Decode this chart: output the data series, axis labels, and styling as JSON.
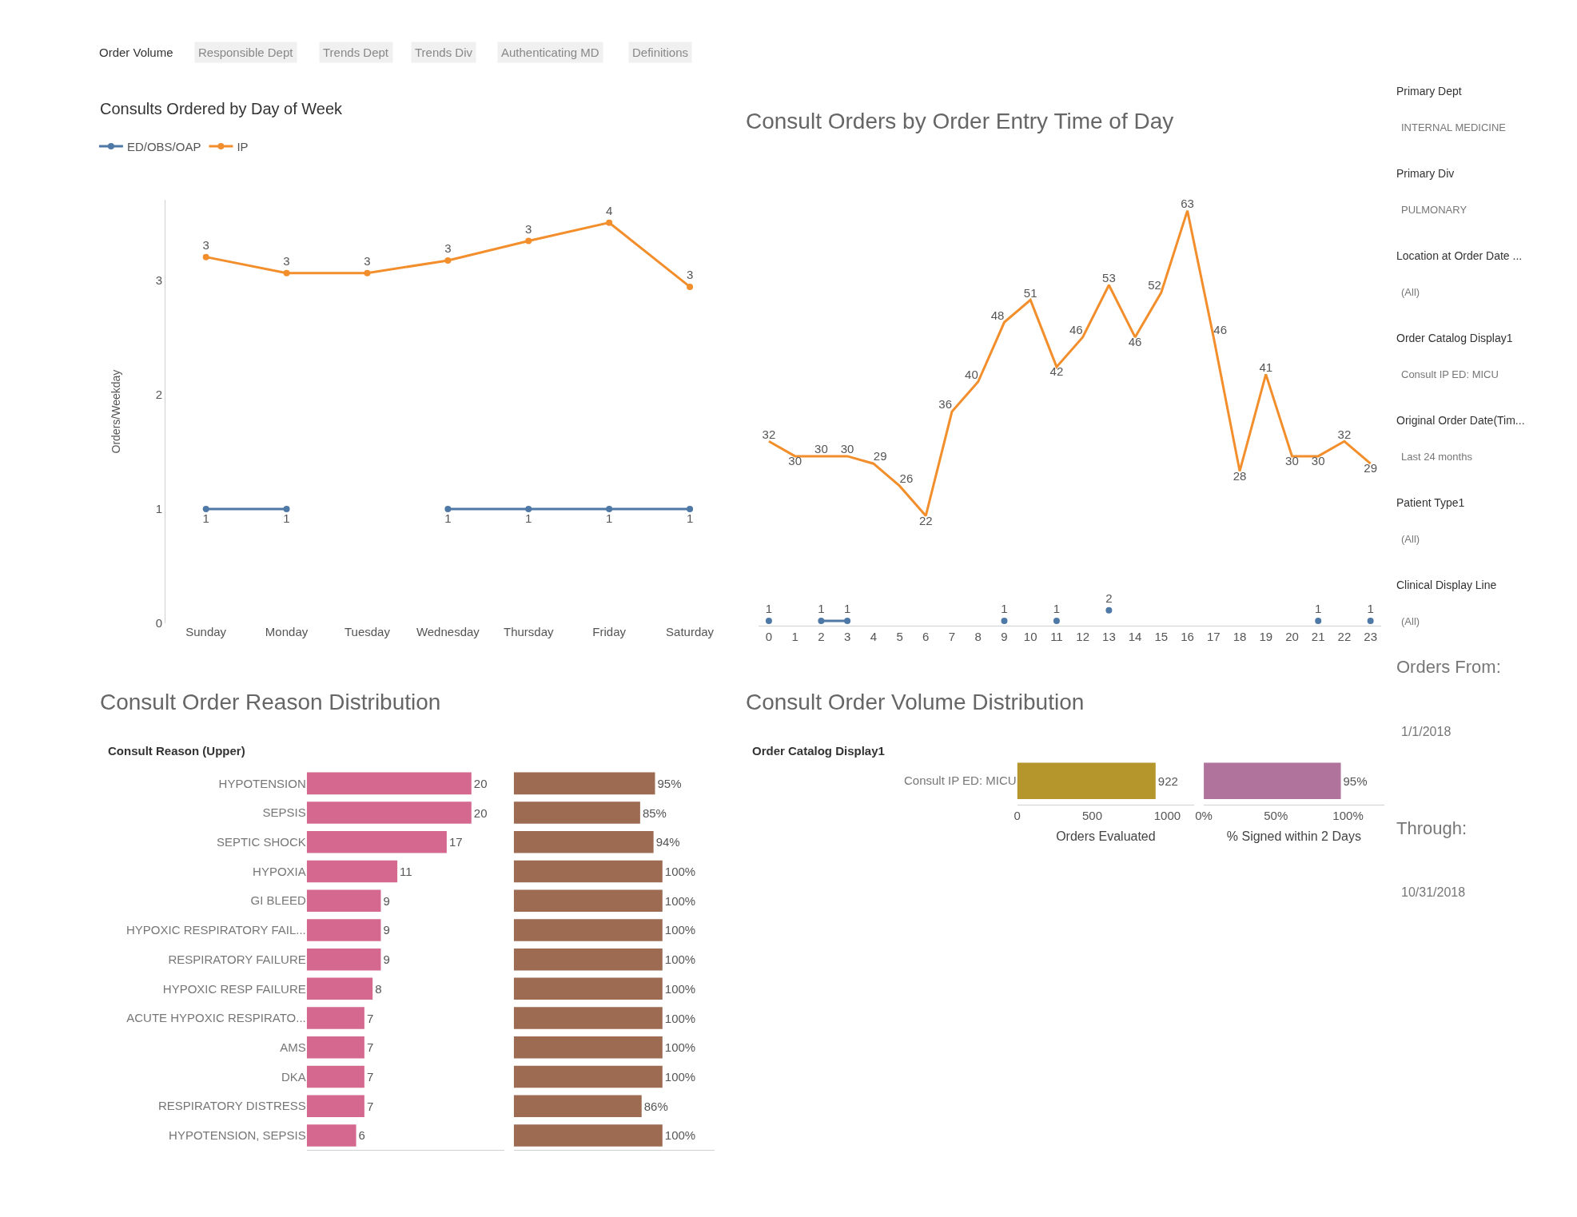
{
  "chart_data": [
    {
      "type": "other",
      "annotations": [
        "Order Volume",
        "Responsible Dept",
        "Trends Dept",
        "Trends Div",
        "Authenticating MD",
        "Definitions"
      ]
    },
    {
      "type": "line",
      "title": "Consults Ordered by Day of Week",
      "ylabel": "Orders/Weekday",
      "categories": [
        "Sunday",
        "Monday",
        "Tuesday",
        "Wednesday",
        "Thursday",
        "Friday",
        "Saturday"
      ],
      "ylim": [
        0,
        3.7
      ],
      "yticks": [
        0,
        1,
        2,
        3
      ],
      "legend": "top left",
      "marker": "circle",
      "series": [
        {
          "name": "ED/OBS/OAP",
          "color": "#4e79a7",
          "values": [
            1,
            1,
            null,
            1,
            1,
            1,
            1
          ],
          "value_labels": [
            "1",
            "1",
            null,
            "1",
            "1",
            "1",
            "1"
          ]
        },
        {
          "name": "IP",
          "color": "#f28e2b",
          "values": [
            3.2,
            3.06,
            3.06,
            3.17,
            3.34,
            3.5,
            2.94
          ],
          "value_labels": [
            "3",
            "3",
            "3",
            "3",
            "3",
            "4",
            "3"
          ]
        }
      ]
    },
    {
      "type": "line",
      "title": "Consult Orders by Order Entry Time of Day",
      "x": [
        0,
        1,
        2,
        3,
        4,
        5,
        6,
        7,
        8,
        9,
        10,
        11,
        12,
        13,
        14,
        15,
        16,
        17,
        18,
        19,
        20,
        21,
        22,
        23
      ],
      "tick_labels": false,
      "data_labels": true,
      "series": [
        {
          "color": "#f28e2b",
          "values": [
            32,
            30,
            30,
            30,
            29,
            26,
            22,
            36,
            40,
            48,
            51,
            42,
            46,
            53,
            46,
            52,
            63,
            46,
            28,
            41,
            30,
            30,
            32,
            29
          ]
        }
      ]
    },
    {
      "type": "line",
      "x": [
        0,
        1,
        2,
        3,
        4,
        5,
        6,
        7,
        8,
        9,
        10,
        11,
        12,
        13,
        14,
        15,
        16,
        17,
        18,
        19,
        20,
        21,
        22,
        23
      ],
      "xlim": [
        -0.4,
        23.4
      ],
      "xticks": [
        0,
        1,
        2,
        3,
        4,
        5,
        6,
        7,
        8,
        9,
        10,
        11,
        12,
        13,
        14,
        15,
        16,
        17,
        18,
        19,
        20,
        21,
        22,
        23
      ],
      "tick_labels": "x",
      "data_labels": true,
      "marker": "circle",
      "series": [
        {
          "color": "#4e79a7",
          "values": [
            1,
            null,
            1,
            1,
            null,
            null,
            null,
            null,
            null,
            1,
            null,
            1,
            null,
            2,
            null,
            null,
            null,
            null,
            null,
            null,
            null,
            1,
            null,
            1
          ]
        }
      ]
    },
    {
      "type": "bar",
      "orientation": "horizontal",
      "title": "Consult Order Reason Distribution",
      "ylabel": "Consult Reason (Upper)",
      "categories": [
        "HYPOTENSION",
        "SEPSIS",
        "SEPTIC SHOCK",
        "HYPOXIA",
        "GI BLEED",
        "HYPOXIC RESPIRATORY FAIL...",
        "RESPIRATORY FAILURE",
        "HYPOXIC RESP FAILURE",
        "ACUTE HYPOXIC RESPIRATO...",
        "AMS",
        "DKA",
        "RESPIRATORY DISTRESS",
        "HYPOTENSION, SEPSIS"
      ],
      "values": [
        20,
        20,
        17,
        11,
        9,
        9,
        9,
        8,
        7,
        7,
        7,
        7,
        6
      ],
      "color": "#d4688f",
      "xlim": [
        0,
        24
      ],
      "tick_labels": "y",
      "data_labels": true
    },
    {
      "type": "bar",
      "orientation": "horizontal",
      "categories": [
        null,
        null,
        null,
        null,
        null,
        null,
        null,
        null,
        null,
        null,
        null,
        null,
        null
      ],
      "values": [
        95,
        85,
        94,
        100,
        100,
        100,
        100,
        100,
        100,
        100,
        100,
        86,
        100
      ],
      "value_labels": [
        "95%",
        "85%",
        "94%",
        "100%",
        "100%",
        "100%",
        "100%",
        "100%",
        "100%",
        "100%",
        "100%",
        "86%",
        "100%"
      ],
      "color": "#9c6b52",
      "xlim": [
        0,
        135
      ],
      "tick_labels": false
    },
    {
      "type": "bar",
      "orientation": "horizontal",
      "title": "Consult Order Volume Distribution",
      "ylabel": "Order Catalog Display1",
      "xlabel": "Orders Evaluated",
      "categories": [
        "Consult IP ED: MICU"
      ],
      "values": [
        922
      ],
      "color": "#b5962c",
      "xlim": [
        0,
        1180
      ],
      "xticks": [
        0,
        500,
        1000
      ],
      "data_labels": true
    },
    {
      "type": "bar",
      "orientation": "horizontal",
      "xlabel": "% Signed within 2 Days",
      "categories": [
        null
      ],
      "values": [
        95
      ],
      "value_labels": [
        "95%"
      ],
      "color": "#b0739c",
      "xlim": [
        0,
        125
      ],
      "xticks": [
        {
          "value": 0,
          "label": "0%"
        },
        {
          "value": 50,
          "label": "50%"
        },
        {
          "value": 100,
          "label": "100%"
        }
      ],
      "tick_labels": "x"
    },
    {
      "type": "other",
      "annotations": [
        "Primary Dept",
        "INTERNAL MEDICINE",
        "Primary Div",
        "PULMONARY",
        "Location at Order Date ...",
        "(All)",
        "Order Catalog Display1",
        "Consult IP ED: MICU",
        "Original Order Date(Tim...",
        "Last 24 months",
        "Patient Type1",
        "(All)",
        "Clinical Display Line",
        "(All)",
        "Orders From:",
        "1/1/2018",
        "Through:",
        "10/31/2018"
      ]
    }
  ]
}
